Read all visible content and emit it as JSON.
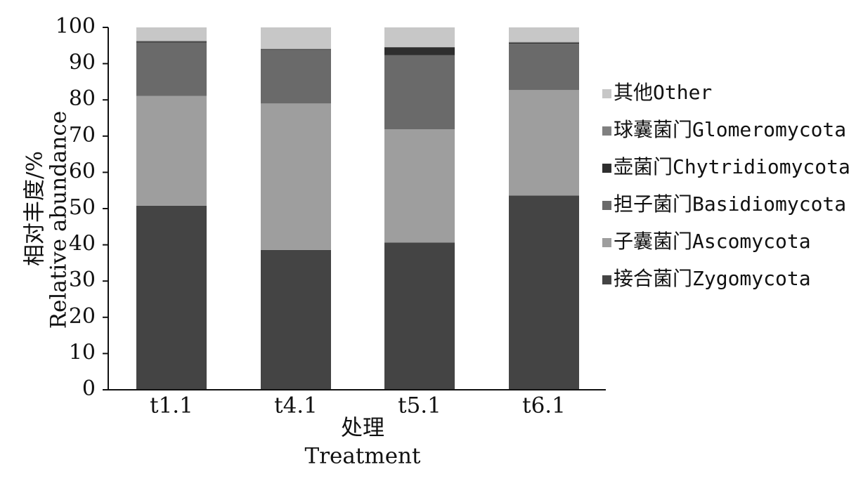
{
  "chart_data": {
    "type": "bar",
    "stacked": true,
    "categories": [
      "t1.1",
      "t4.1",
      "t5.1",
      "t6.1"
    ],
    "series": [
      {
        "name": "接合菌门Zygomycota",
        "color": "#444444",
        "values": [
          50.8,
          38.6,
          40.6,
          53.6
        ]
      },
      {
        "name": "子囊菌门Ascomycota",
        "color": "#9e9e9e",
        "values": [
          30.3,
          40.4,
          31.3,
          29.1
        ]
      },
      {
        "name": "担子菌门Basidiomycota",
        "color": "#6a6a6a",
        "values": [
          14.7,
          14.9,
          20.4,
          12.8
        ]
      },
      {
        "name": "壶菌门Chytridiomycota",
        "color": "#2e2e2e",
        "values": [
          0.3,
          0.1,
          2.2,
          0.3
        ]
      },
      {
        "name": "球囊菌门Glomeromycota",
        "color": "#808080",
        "values": [
          0.2,
          0.1,
          0.1,
          0.2
        ]
      },
      {
        "name": "其他Other",
        "color": "#c7c7c7",
        "values": [
          3.7,
          5.9,
          5.4,
          4.0
        ]
      }
    ],
    "ylim": [
      0,
      100
    ],
    "yticks": [
      0,
      10,
      20,
      30,
      40,
      50,
      60,
      70,
      80,
      90,
      100
    ],
    "ylabel_lines": [
      "相对丰度/%",
      "Relative abundance"
    ],
    "xlabel_lines": [
      "处理",
      "Treatment"
    ],
    "legend_position": "right",
    "legend_order": [
      5,
      4,
      3,
      2,
      1,
      0
    ],
    "grid": false
  }
}
